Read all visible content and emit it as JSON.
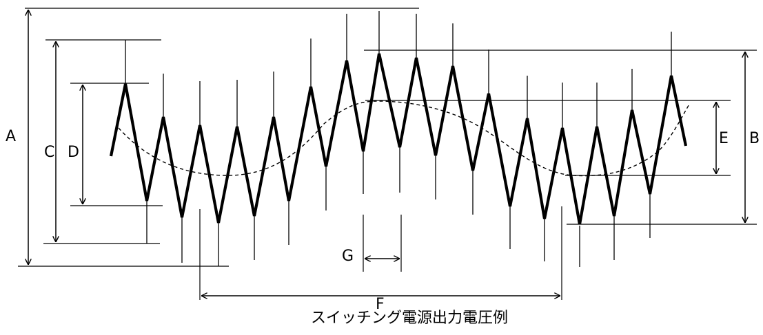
{
  "diagram": {
    "caption": "スイッチング電源出力電圧例",
    "dimension_labels": {
      "A": "A",
      "B": "B",
      "C": "C",
      "D": "D",
      "E": "E",
      "F": "F",
      "G": "G"
    }
  },
  "colors": {
    "stroke": "#000000",
    "background": "#ffffff"
  }
}
